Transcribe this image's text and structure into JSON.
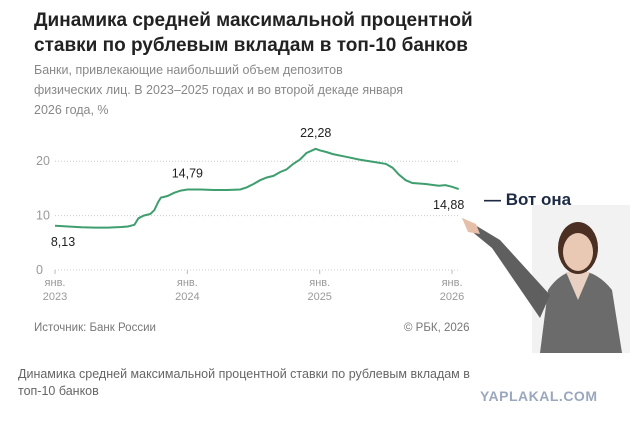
{
  "chart_data": {
    "type": "line",
    "title": "Динамика средней максимальной процентной ставки по рублевым вкладам в топ-10 банков",
    "subtitle": "Банки, привлекающие наибольший объем депозитов физических лиц. В 2023–2025 годах и во второй декаде января 2026 года, %",
    "source": "Источник: Банк России",
    "copyright": "© РБК, 2026",
    "caption": "Динамика средней максимальной процентной ставки по рублевым вкладам в топ-10 банков",
    "annotation": "— Вот она",
    "watermark": "YAPLAKAL.COM",
    "color": "#3f9e6e",
    "grid": true,
    "x": [
      2023.0,
      2023.1,
      2023.2,
      2023.3,
      2023.4,
      2023.5,
      2023.55,
      2023.6,
      2023.63,
      2023.67,
      2023.72,
      2023.75,
      2023.78,
      2023.8,
      2023.85,
      2023.9,
      2023.95,
      2024.0,
      2024.1,
      2024.2,
      2024.3,
      2024.4,
      2024.45,
      2024.5,
      2024.55,
      2024.6,
      2024.65,
      2024.7,
      2024.75,
      2024.8,
      2024.85,
      2024.9,
      2024.97,
      2025.0,
      2025.05,
      2025.1,
      2025.2,
      2025.3,
      2025.4,
      2025.5,
      2025.55,
      2025.6,
      2025.65,
      2025.7,
      2025.8,
      2025.9,
      2025.95,
      2026.0,
      2026.05
    ],
    "values": [
      8.13,
      8.0,
      7.85,
      7.8,
      7.8,
      7.9,
      8.0,
      8.3,
      9.5,
      10.0,
      10.3,
      11.0,
      12.5,
      13.3,
      13.6,
      14.2,
      14.6,
      14.79,
      14.8,
      14.7,
      14.7,
      14.8,
      15.2,
      15.8,
      16.5,
      17.0,
      17.3,
      18.0,
      18.5,
      19.5,
      20.3,
      21.5,
      22.28,
      22.0,
      21.7,
      21.3,
      20.8,
      20.3,
      19.9,
      19.5,
      18.8,
      17.5,
      16.5,
      16.0,
      15.8,
      15.5,
      15.6,
      15.3,
      14.88
    ],
    "value_labels": [
      "8,13",
      null,
      null,
      null,
      null,
      null,
      null,
      null,
      null,
      null,
      null,
      null,
      null,
      null,
      null,
      null,
      null,
      "14,79",
      null,
      null,
      null,
      null,
      null,
      null,
      null,
      null,
      null,
      null,
      null,
      null,
      null,
      null,
      "22,28",
      null,
      null,
      null,
      null,
      null,
      null,
      null,
      null,
      null,
      null,
      null,
      null,
      null,
      null,
      null,
      "14,88"
    ],
    "xlim": [
      2023.0,
      2026.06
    ],
    "ylim": [
      0,
      25
    ],
    "yticks": [
      0,
      10,
      20
    ],
    "xticks": [
      {
        "value": 2023,
        "label": "янв.\n2023"
      },
      {
        "value": 2024,
        "label": "янв.\n2024"
      },
      {
        "value": 2025,
        "label": "янв.\n2025"
      },
      {
        "value": 2026,
        "label": "янв.\n2026"
      }
    ]
  }
}
